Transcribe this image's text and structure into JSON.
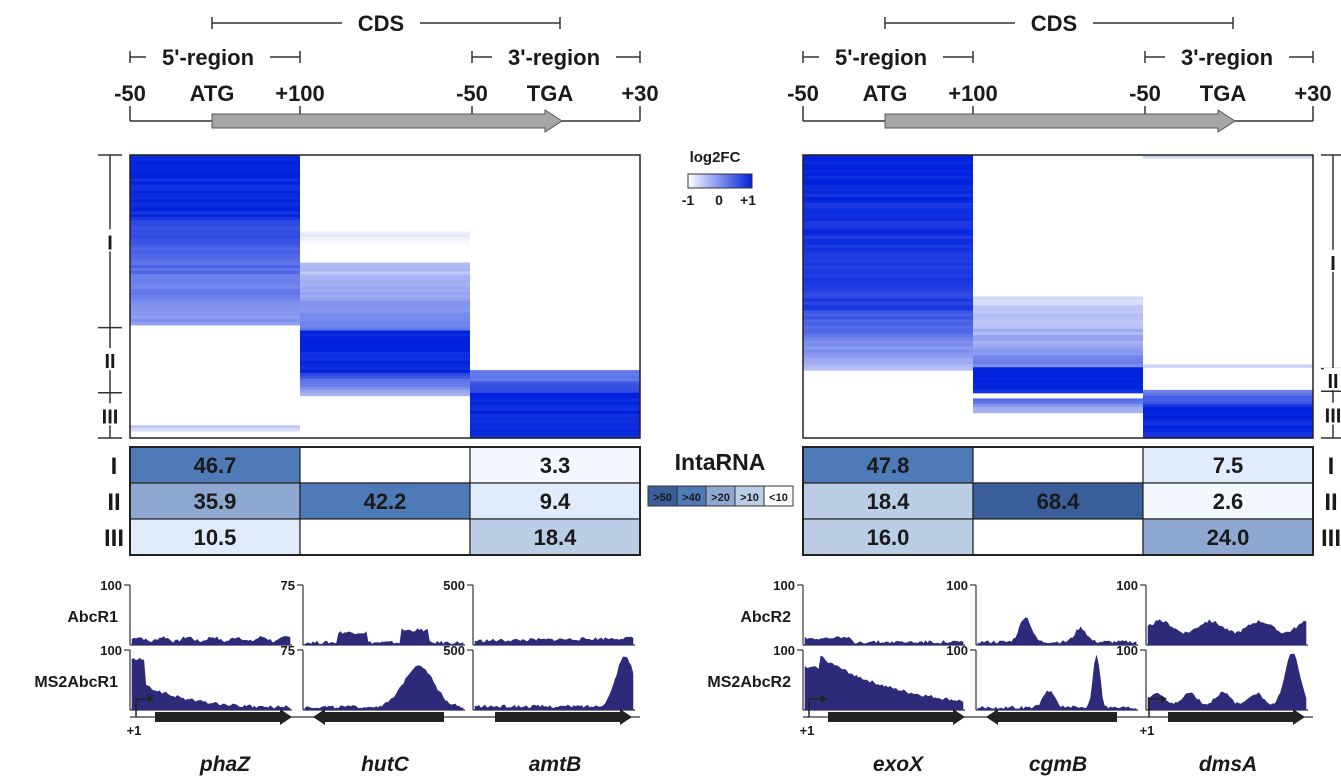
{
  "region_labels": {
    "cds": "CDS",
    "five_prime": "5'-region",
    "three_prime": "3'-region",
    "ticks": [
      "-50",
      "ATG",
      "+100",
      "-50",
      "TGA",
      "+30"
    ]
  },
  "colors": {
    "heat_max": "#0022dd",
    "heat_min": "#ffffff",
    "coverage": "#2e2a7a",
    "table_scale": [
      "#3a5e9a",
      "#4f7ab8",
      "#8ea8d2",
      "#bccde6",
      "#e0ecfb",
      "#f3f8ff",
      "#ffffff"
    ],
    "gene_arrow": "#222222",
    "cds_arrow": "#a6a6a6"
  },
  "log2fc_legend": {
    "title": "log2FC",
    "ticks": [
      "-1",
      "0",
      "+1"
    ]
  },
  "intarna_legend": {
    "title": "IntaRNA",
    "bins": [
      ">50",
      ">40",
      ">20",
      ">10",
      "<10"
    ]
  },
  "panels": [
    {
      "cluster_labels": [
        "I",
        "II",
        "III"
      ],
      "intarna_table": [
        [
          "46.7",
          "",
          "3.3"
        ],
        [
          "35.9",
          "42.2",
          "9.4"
        ],
        [
          "10.5",
          "",
          "18.4"
        ]
      ],
      "tracks": [
        {
          "name": "AbcR1",
          "scales": [
            "100",
            "75",
            "500"
          ]
        },
        {
          "name": "MS2AbcR1",
          "scales": [
            "100",
            "75",
            "500"
          ]
        }
      ],
      "genes": [
        {
          "name": "phaZ",
          "tss": "+1",
          "strand": "+"
        },
        {
          "name": "hutC",
          "tss": "",
          "strand": "-"
        },
        {
          "name": "amtB",
          "tss": "",
          "strand": "+"
        }
      ]
    },
    {
      "cluster_labels": [
        "I",
        "II",
        "III"
      ],
      "intarna_table": [
        [
          "47.8",
          "",
          "7.5"
        ],
        [
          "18.4",
          "68.4",
          "2.6"
        ],
        [
          "16.0",
          "",
          "24.0"
        ]
      ],
      "tracks": [
        {
          "name": "AbcR2",
          "scales": [
            "100",
            "100",
            "100"
          ]
        },
        {
          "name": "MS2AbcR2",
          "scales": [
            "100",
            "100",
            "100"
          ]
        }
      ],
      "genes": [
        {
          "name": "exoX",
          "tss": "+1",
          "strand": "+"
        },
        {
          "name": "cgmB",
          "tss": "",
          "strand": "-"
        },
        {
          "name": "dmsA",
          "tss": "+1",
          "strand": "+"
        }
      ]
    }
  ]
}
